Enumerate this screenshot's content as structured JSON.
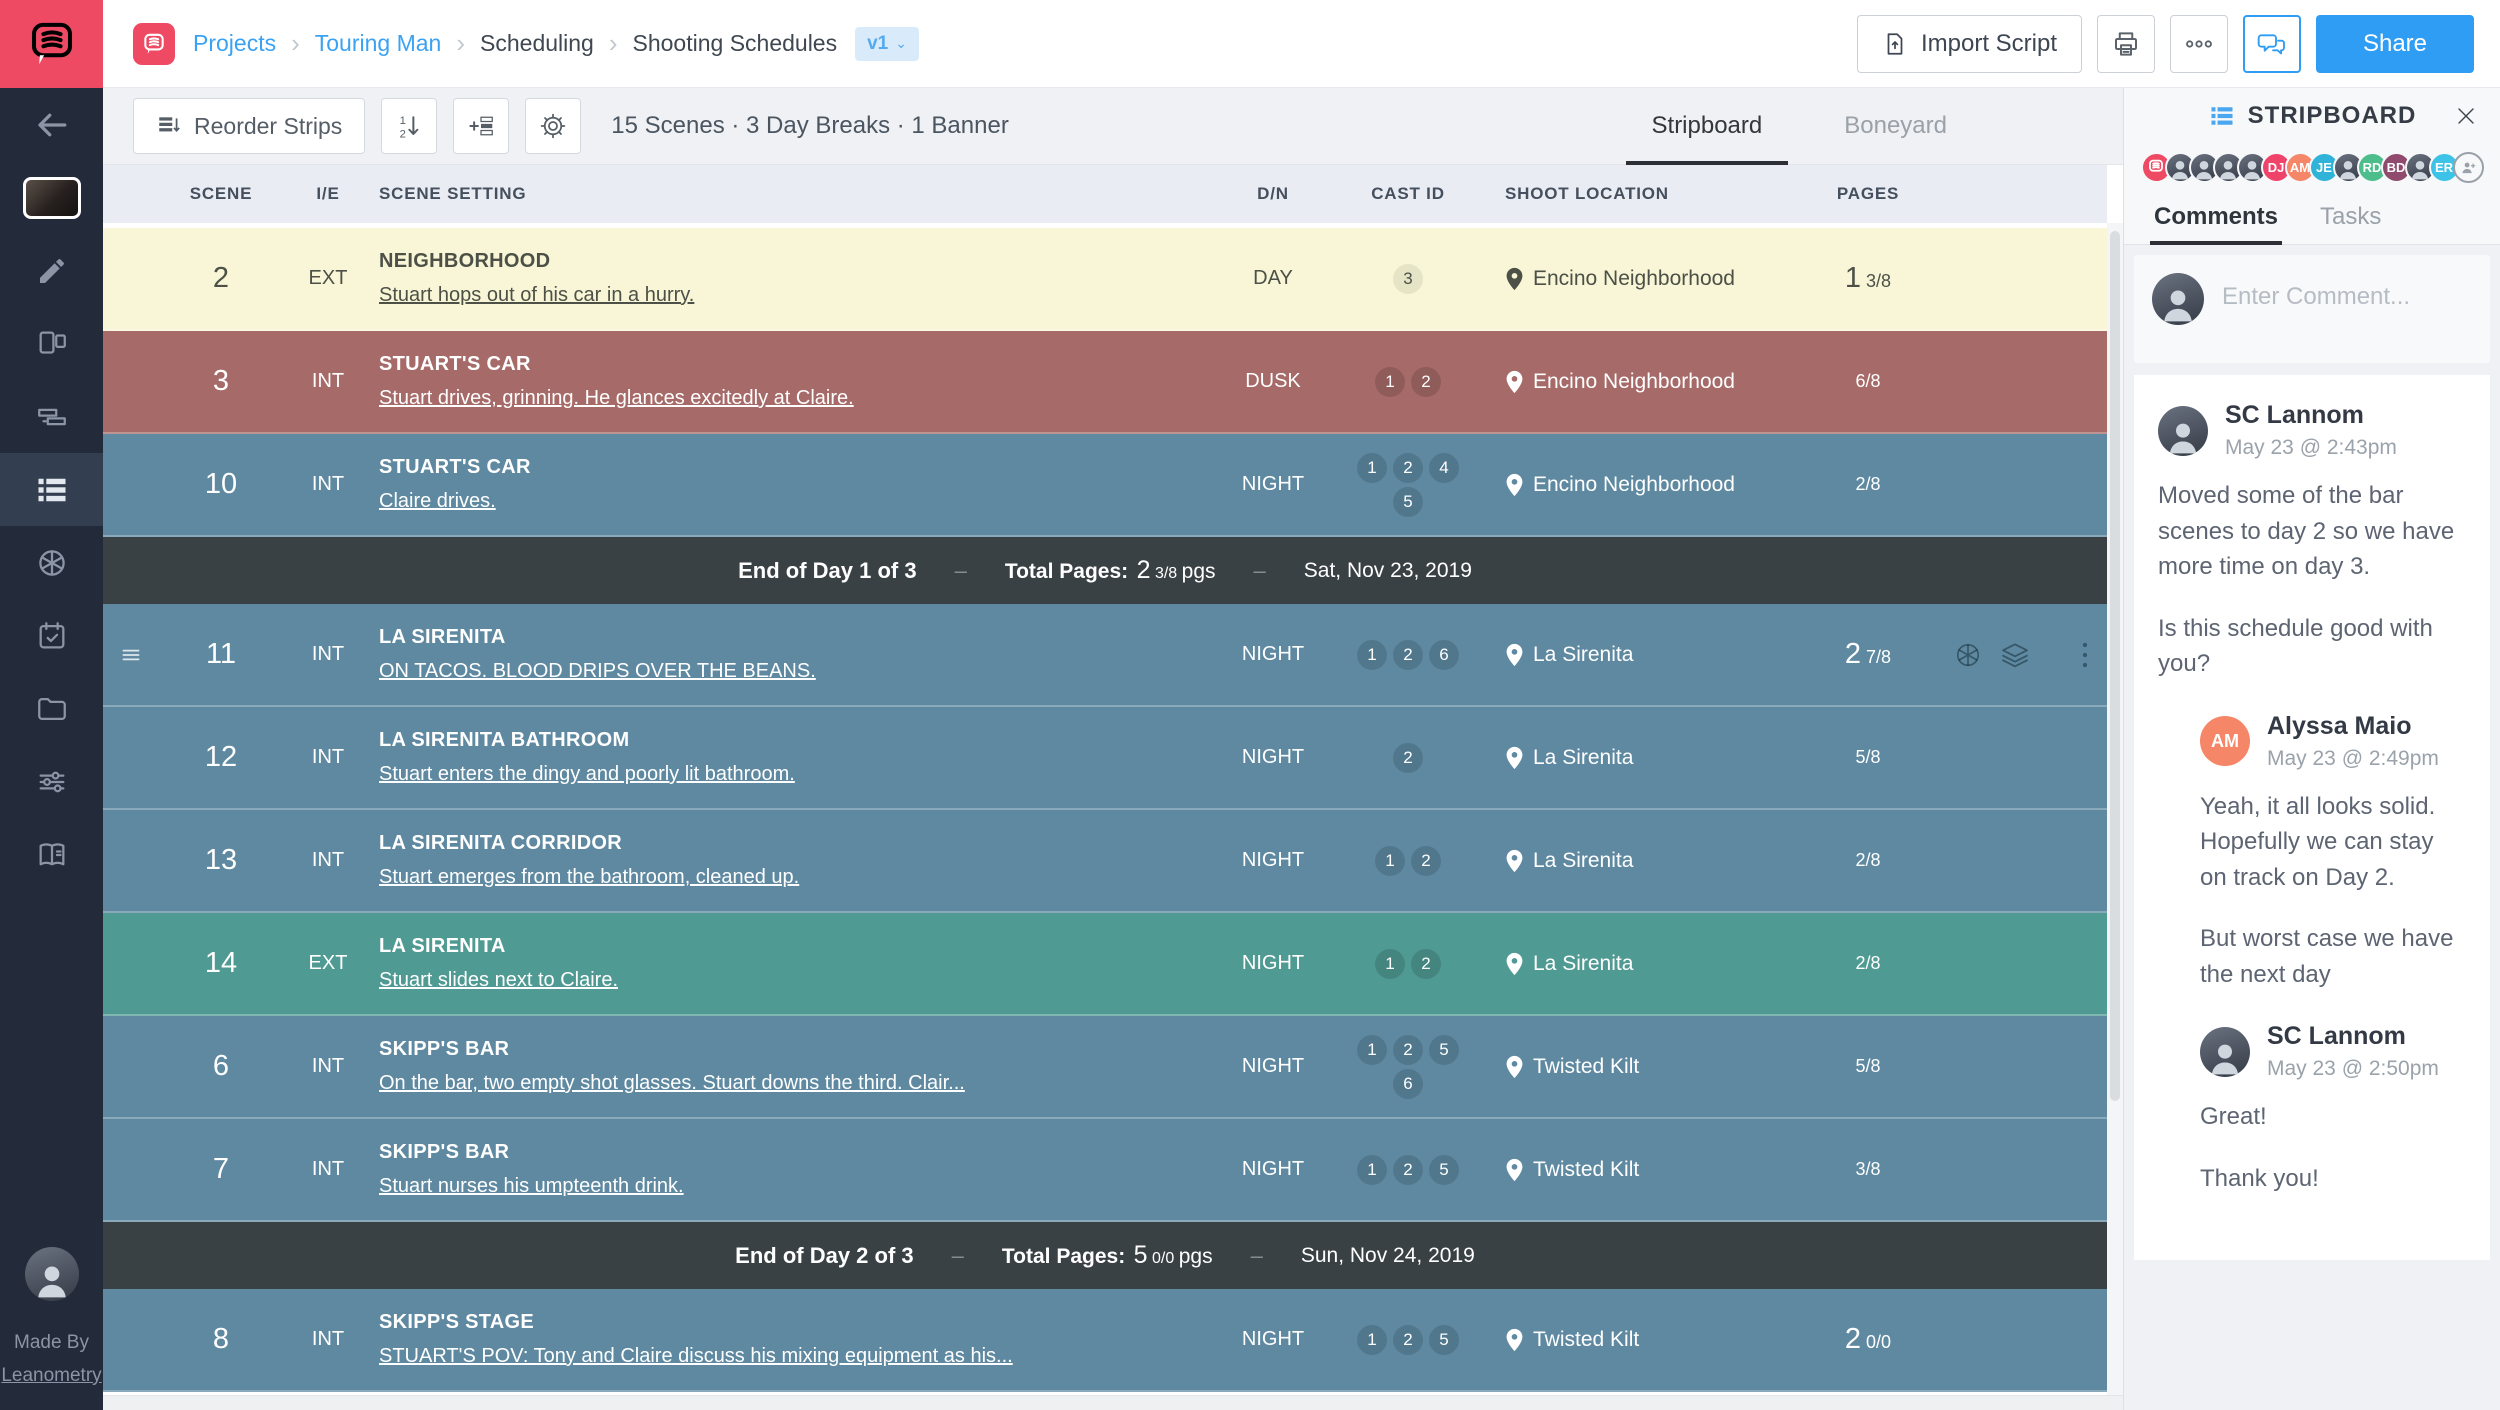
{
  "colors": {
    "row_yellow": "#f8f6d7",
    "row_red": "#a66a68",
    "row_blue": "#5e89a1",
    "row_teal": "#4f9a92",
    "banner_bg": "#3a4145",
    "accent_pink": "#ee4a63",
    "accent_blue": "#2f9df3"
  },
  "topbar": {
    "breadcrumb": {
      "items": [
        {
          "label": "Projects",
          "link": true
        },
        {
          "label": "Touring Man",
          "link": true
        },
        {
          "label": "Scheduling",
          "link": false
        },
        {
          "label": "Shooting Schedules",
          "link": false
        }
      ],
      "version_badge": "v1"
    },
    "import_script_label": "Import Script",
    "share_label": "Share"
  },
  "toolbar": {
    "reorder_strips_label": "Reorder Strips",
    "summary": "15 Scenes · 3 Day Breaks · 1 Banner",
    "tabs": [
      {
        "label": "Stripboard",
        "active": true
      },
      {
        "label": "Boneyard",
        "active": false
      }
    ]
  },
  "sidebar": {
    "made_by_line1": "Made By",
    "made_by_line2": "Leanometry",
    "items": [
      {
        "icon": "back-arrow-icon",
        "active": false
      },
      {
        "icon": "project-thumbnail",
        "active": false
      },
      {
        "icon": "pencil-icon",
        "active": false
      },
      {
        "icon": "script-pages-icon",
        "active": false
      },
      {
        "icon": "breakdown-strips-icon",
        "active": false
      },
      {
        "icon": "stripboard-icon",
        "active": true
      },
      {
        "icon": "aperture-icon",
        "active": false
      },
      {
        "icon": "calendar-icon",
        "active": false
      },
      {
        "icon": "folder-icon",
        "active": false
      },
      {
        "icon": "sliders-icon",
        "active": false
      },
      {
        "icon": "book-icon",
        "active": false
      }
    ]
  },
  "table": {
    "columns": [
      "SCENE",
      "I/E",
      "SCENE SETTING",
      "D/N",
      "CAST ID",
      "SHOOT LOCATION",
      "PAGES"
    ],
    "rows": [
      {
        "type": "scene",
        "scene": "2",
        "ie": "EXT",
        "setting": "NEIGHBORHOOD",
        "description": "Stuart hops out of his car in a hurry.",
        "dn": "DAY",
        "cast": [
          "3"
        ],
        "location": "Encino Neighborhood",
        "pages_whole": "1",
        "pages_fraction": "3/8",
        "color": "row_yellow",
        "text": "dark",
        "hovered": false
      },
      {
        "type": "scene",
        "scene": "3",
        "ie": "INT",
        "setting": "STUART'S CAR",
        "description": "Stuart drives, grinning. He glances excitedly at Claire.",
        "dn": "DUSK",
        "cast": [
          "1",
          "2"
        ],
        "location": "Encino Neighborhood",
        "pages_whole": "",
        "pages_fraction": "6/8",
        "color": "row_red",
        "text": "light",
        "hovered": false
      },
      {
        "type": "scene",
        "scene": "10",
        "ie": "INT",
        "setting": "STUART'S CAR",
        "description": "Claire drives.",
        "dn": "NIGHT",
        "cast": [
          "1",
          "2",
          "4",
          "5"
        ],
        "location": "Encino Neighborhood",
        "pages_whole": "",
        "pages_fraction": "2/8",
        "color": "row_blue",
        "text": "light",
        "hovered": false
      },
      {
        "type": "banner",
        "label": "End of Day 1 of 3",
        "total_label": "Total Pages:",
        "pages_whole": "2",
        "pages_fraction": "3/8",
        "pages_unit": "pgs",
        "date": "Sat, Nov 23, 2019"
      },
      {
        "type": "scene",
        "scene": "11",
        "ie": "INT",
        "setting": "LA SIRENITA",
        "description": "ON TACOS. BLOOD DRIPS OVER THE BEANS.",
        "dn": "NIGHT",
        "cast": [
          "1",
          "2",
          "6"
        ],
        "location": "La Sirenita",
        "pages_whole": "2",
        "pages_fraction": "7/8",
        "color": "row_blue",
        "text": "light",
        "hovered": true
      },
      {
        "type": "scene",
        "scene": "12",
        "ie": "INT",
        "setting": "LA SIRENITA BATHROOM",
        "description": "Stuart enters the dingy and poorly lit bathroom.",
        "dn": "NIGHT",
        "cast": [
          "2"
        ],
        "location": "La Sirenita",
        "pages_whole": "",
        "pages_fraction": "5/8",
        "color": "row_blue",
        "text": "light",
        "hovered": false
      },
      {
        "type": "scene",
        "scene": "13",
        "ie": "INT",
        "setting": "LA SIRENITA CORRIDOR",
        "description": "Stuart emerges from the bathroom, cleaned up.",
        "dn": "NIGHT",
        "cast": [
          "1",
          "2"
        ],
        "location": "La Sirenita",
        "pages_whole": "",
        "pages_fraction": "2/8",
        "color": "row_blue",
        "text": "light",
        "hovered": false
      },
      {
        "type": "scene",
        "scene": "14",
        "ie": "EXT",
        "setting": "LA SIRENITA",
        "description": "Stuart slides next to Claire.",
        "dn": "NIGHT",
        "cast": [
          "1",
          "2"
        ],
        "location": "La Sirenita",
        "pages_whole": "",
        "pages_fraction": "2/8",
        "color": "row_teal",
        "text": "light",
        "hovered": false
      },
      {
        "type": "scene",
        "scene": "6",
        "ie": "INT",
        "setting": "SKIPP'S BAR",
        "description": "On the bar, two empty shot glasses. Stuart downs the third. Clair...",
        "dn": "NIGHT",
        "cast": [
          "1",
          "2",
          "5",
          "6"
        ],
        "location": "Twisted Kilt",
        "pages_whole": "",
        "pages_fraction": "5/8",
        "color": "row_blue",
        "text": "light",
        "hovered": false
      },
      {
        "type": "scene",
        "scene": "7",
        "ie": "INT",
        "setting": "SKIPP'S BAR",
        "description": "Stuart nurses his umpteenth drink.",
        "dn": "NIGHT",
        "cast": [
          "1",
          "2",
          "5"
        ],
        "location": "Twisted Kilt",
        "pages_whole": "",
        "pages_fraction": "3/8",
        "color": "row_blue",
        "text": "light",
        "hovered": false
      },
      {
        "type": "banner",
        "label": "End of Day 2 of 3",
        "total_label": "Total Pages:",
        "pages_whole": "5",
        "pages_fraction": "0/0",
        "pages_unit": "pgs",
        "date": "Sun, Nov 24, 2019"
      },
      {
        "type": "scene",
        "scene": "8",
        "ie": "INT",
        "setting": "SKIPP'S STAGE",
        "description": "STUART'S POV: Tony and Claire discuss his mixing equipment as his...",
        "dn": "NIGHT",
        "cast": [
          "1",
          "2",
          "5"
        ],
        "location": "Twisted Kilt",
        "pages_whole": "2",
        "pages_fraction": "0/0",
        "color": "row_blue",
        "text": "light",
        "hovered": false
      }
    ]
  },
  "panel": {
    "title": "STRIPBOARD",
    "tabs": [
      {
        "label": "Comments",
        "active": true
      },
      {
        "label": "Tasks",
        "active": false
      }
    ],
    "composer_placeholder": "Enter Comment...",
    "members": [
      {
        "type": "logo",
        "color": "#ee4a63"
      },
      {
        "type": "photo"
      },
      {
        "type": "photo"
      },
      {
        "type": "photo"
      },
      {
        "type": "photo"
      },
      {
        "type": "initials",
        "text": "DJ",
        "color": "#f0436a"
      },
      {
        "type": "initials",
        "text": "AM",
        "color": "#f58667"
      },
      {
        "type": "initials",
        "text": "JE",
        "color": "#2fb3d8"
      },
      {
        "type": "photo"
      },
      {
        "type": "initials",
        "text": "RD",
        "color": "#4dbd8c"
      },
      {
        "type": "initials",
        "text": "BD",
        "color": "#8f4a6e"
      },
      {
        "type": "photo"
      },
      {
        "type": "initials",
        "text": "ER",
        "color": "#3ec3e8"
      },
      {
        "type": "add"
      }
    ],
    "comments": [
      {
        "author": "SC Lannom",
        "time": "May 23 @ 2:43pm",
        "avatar": "photo",
        "indent": false,
        "paragraphs": [
          "Moved some of the bar scenes to day 2 so we have more time on day 3.",
          "Is this schedule good with you?"
        ]
      },
      {
        "author": "Alyssa Maio",
        "time": "May 23 @ 2:49pm",
        "avatar": "initials",
        "initials": "AM",
        "avatar_color": "#f58667",
        "indent": true,
        "paragraphs": [
          "Yeah, it all looks solid.\nHopefully we can stay on track on Day 2.",
          "But worst case we have the next day"
        ]
      },
      {
        "author": "SC Lannom",
        "time": "May 23 @ 2:50pm",
        "avatar": "photo",
        "indent": true,
        "paragraphs": [
          "Great!",
          "Thank you!"
        ]
      }
    ]
  }
}
